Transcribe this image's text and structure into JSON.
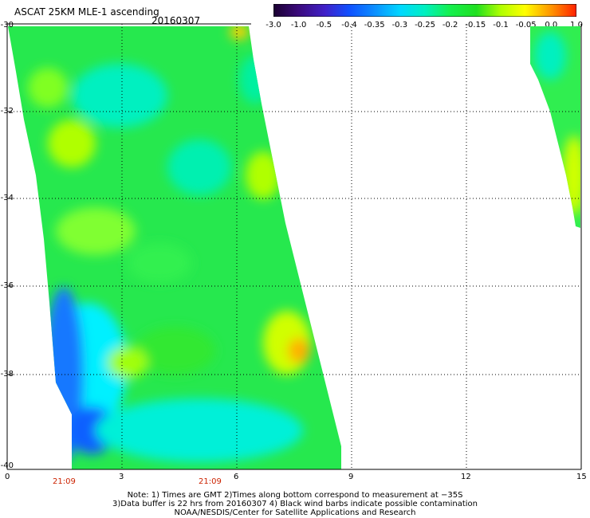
{
  "header": {
    "title": "ASCAT 25KM MLE-1 ascending",
    "date": "20160307"
  },
  "colorbar": {
    "labels": [
      "-3.0",
      "-1.0",
      "-0.5",
      "-0.4",
      "-0.35",
      "-0.3",
      "-0.25",
      "-0.2",
      "-0.15",
      "-0.1",
      "-0.05",
      "0.0",
      "1.0"
    ],
    "colors": [
      "#1a0030",
      "#3a0a7a",
      "#4020c8",
      "#1050ff",
      "#0c8cff",
      "#00d8ff",
      "#00f0c0",
      "#14f050",
      "#20e020",
      "#b0ff00",
      "#ffff00",
      "#ff9000",
      "#ff2000"
    ]
  },
  "map": {
    "lat_labels": [
      "-30",
      "-32",
      "-34",
      "-36",
      "-38",
      "-40"
    ],
    "lon_labels": [
      "0",
      "3",
      "6",
      "9",
      "12",
      "15"
    ],
    "time_labels": [
      "21:09",
      "21:09"
    ]
  },
  "notes": {
    "line1": "Note: 1) Times are GMT 2)Times along bottom correspond to measurement at −35S",
    "line2": "3)Data buffer is 22 hrs from 20160307 4) Black wind barbs indicate possible contamination",
    "line3": "NOAA/NESDIS/Center for Satellite Applications and Research"
  }
}
